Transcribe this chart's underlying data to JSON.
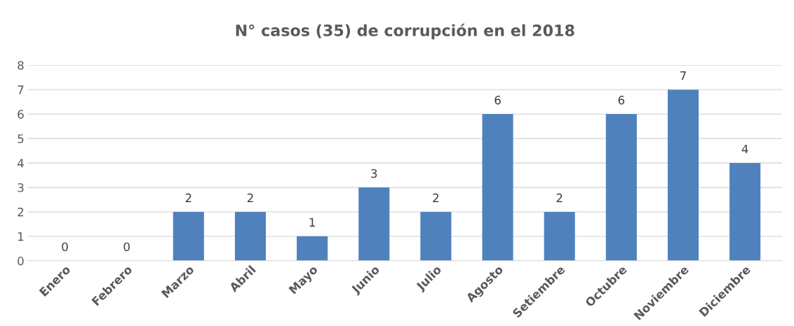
{
  "chart_data": {
    "type": "bar",
    "title": "N° casos (35) de corrupción en el 2018",
    "categories": [
      "Enero",
      "Febrero",
      "Marzo",
      "Abril",
      "Mayo",
      "Junio",
      "Julio",
      "Agosto",
      "Setiembre",
      "Octubre",
      "Noviembre",
      "Diciembre"
    ],
    "values": [
      0,
      0,
      2,
      2,
      1,
      3,
      2,
      6,
      2,
      6,
      7,
      4
    ],
    "color": "#4f81bd",
    "ylim": [
      0,
      8
    ],
    "yticks": [
      0,
      1,
      2,
      3,
      4,
      5,
      6,
      7,
      8
    ],
    "grid": "y",
    "data_labels": true
  }
}
